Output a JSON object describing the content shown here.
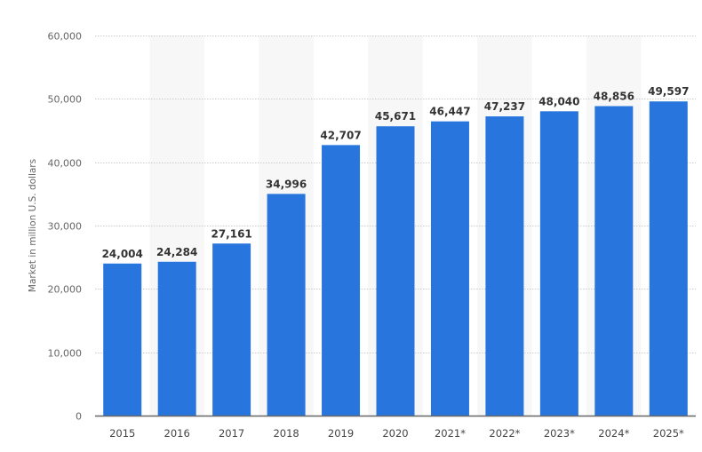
{
  "chart_data": {
    "type": "bar",
    "title": "",
    "xlabel": "",
    "ylabel": "Market in million U.S. dollars",
    "ylim": [
      0,
      60000
    ],
    "yticks": [
      0,
      10000,
      20000,
      30000,
      40000,
      50000,
      60000
    ],
    "ytick_labels": [
      "0",
      "10,000",
      "20,000",
      "30,000",
      "40,000",
      "50,000",
      "60,000"
    ],
    "grid": true,
    "legend": null,
    "categories": [
      "2015",
      "2016",
      "2017",
      "2018",
      "2019",
      "2020",
      "2021*",
      "2022*",
      "2023*",
      "2024*",
      "2025*"
    ],
    "values": [
      24004,
      24284,
      27161,
      34996,
      42707,
      45671,
      46447,
      47237,
      48040,
      48856,
      49597
    ],
    "value_labels": [
      "24,004",
      "24,284",
      "27,161",
      "34,996",
      "42,707",
      "45,671",
      "46,447",
      "47,237",
      "48,040",
      "48,856",
      "49,597"
    ],
    "bar_color": "#2876dd"
  },
  "colors": {
    "bar": "#2876dd",
    "band": "#f7f7f7",
    "grid": "#cccccc",
    "axis": "#666666"
  }
}
